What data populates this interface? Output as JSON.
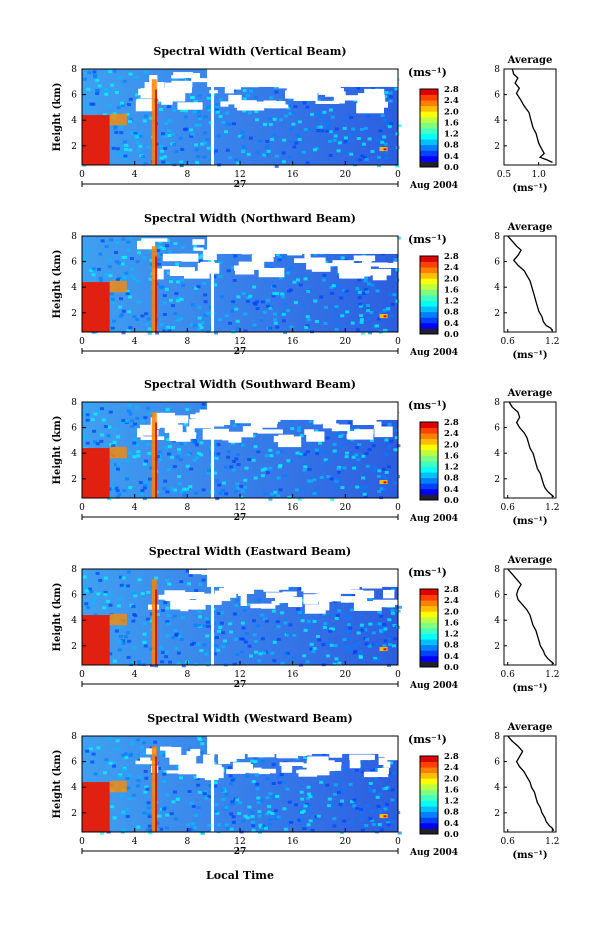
{
  "figure": {
    "xlabel_bottom": "Local Time",
    "date_label": "Aug 2004",
    "day_label": "27"
  },
  "chart_data": [
    {
      "type": "heatmap",
      "title": "Spectral Width (Vertical Beam)",
      "ylabel": "Height (km)",
      "xlabel": "",
      "x_ticks": [
        "0",
        "4",
        "8",
        "12",
        "16",
        "20",
        "0"
      ],
      "y_ticks": [
        "2",
        "4",
        "6",
        "8"
      ],
      "ylim": [
        0.5,
        8
      ],
      "xlim": [
        0,
        24
      ],
      "colorbar": {
        "unit": "(ms⁻¹)",
        "ticks": [
          "0.0",
          "0.4",
          "0.8",
          "1.2",
          "1.6",
          "2.0",
          "2.4",
          "2.8"
        ],
        "range": [
          0,
          2.8
        ]
      },
      "profile": {
        "title": "Average",
        "xlabel": "(ms⁻¹)",
        "x_ticks": [
          "0.5",
          "1.0"
        ],
        "xlim": [
          0.5,
          1.25
        ],
        "y_ticks": [
          "2",
          "4",
          "6",
          "8"
        ],
        "ylim": [
          0.5,
          8
        ],
        "points": [
          [
            0.62,
            8.0
          ],
          [
            0.64,
            7.6
          ],
          [
            0.7,
            7.3
          ],
          [
            0.66,
            6.9
          ],
          [
            0.72,
            6.5
          ],
          [
            0.68,
            6.1
          ],
          [
            0.74,
            5.6
          ],
          [
            0.78,
            5.2
          ],
          [
            0.82,
            4.9
          ],
          [
            0.86,
            4.6
          ],
          [
            0.88,
            4.2
          ],
          [
            0.9,
            3.8
          ],
          [
            0.92,
            3.4
          ],
          [
            0.96,
            3.0
          ],
          [
            0.98,
            2.6
          ],
          [
            1.0,
            2.2
          ],
          [
            1.04,
            1.8
          ],
          [
            1.08,
            1.4
          ],
          [
            1.02,
            1.1
          ],
          [
            1.12,
            0.9
          ],
          [
            1.2,
            0.7
          ]
        ]
      }
    },
    {
      "type": "heatmap",
      "title": "Spectral Width (Northward Beam)",
      "ylabel": "Height (km)",
      "xlabel": "",
      "x_ticks": [
        "0",
        "4",
        "8",
        "12",
        "16",
        "20",
        "0"
      ],
      "y_ticks": [
        "2",
        "4",
        "6",
        "8"
      ],
      "ylim": [
        0.5,
        8
      ],
      "xlim": [
        0,
        24
      ],
      "colorbar": {
        "unit": "(ms⁻¹)",
        "ticks": [
          "0.0",
          "0.4",
          "0.8",
          "1.2",
          "1.6",
          "2.0",
          "2.4",
          "2.8"
        ],
        "range": [
          0,
          2.8
        ]
      },
      "profile": {
        "title": "Average",
        "xlabel": "(ms⁻¹)",
        "x_ticks": [
          "0.6",
          "1.2"
        ],
        "xlim": [
          0.55,
          1.25
        ],
        "y_ticks": [
          "2",
          "4",
          "6",
          "8"
        ],
        "ylim": [
          0.5,
          8
        ],
        "points": [
          [
            0.6,
            8.0
          ],
          [
            0.66,
            7.6
          ],
          [
            0.72,
            7.2
          ],
          [
            0.78,
            6.9
          ],
          [
            0.74,
            6.5
          ],
          [
            0.68,
            6.1
          ],
          [
            0.74,
            5.7
          ],
          [
            0.82,
            5.3
          ],
          [
            0.86,
            4.9
          ],
          [
            0.9,
            4.5
          ],
          [
            0.92,
            4.1
          ],
          [
            0.94,
            3.7
          ],
          [
            0.96,
            3.3
          ],
          [
            0.98,
            2.9
          ],
          [
            1.0,
            2.5
          ],
          [
            1.02,
            2.1
          ],
          [
            1.06,
            1.7
          ],
          [
            1.08,
            1.3
          ],
          [
            1.12,
            1.0
          ],
          [
            1.18,
            0.8
          ],
          [
            1.2,
            0.6
          ]
        ]
      }
    },
    {
      "type": "heatmap",
      "title": "Spectral Width (Southward Beam)",
      "ylabel": "Height (km)",
      "xlabel": "",
      "x_ticks": [
        "0",
        "4",
        "8",
        "12",
        "16",
        "20",
        "0"
      ],
      "y_ticks": [
        "2",
        "4",
        "6",
        "8"
      ],
      "ylim": [
        0.5,
        8
      ],
      "xlim": [
        0,
        24
      ],
      "colorbar": {
        "unit": "(ms⁻¹)",
        "ticks": [
          "0.0",
          "0.4",
          "0.8",
          "1.2",
          "1.6",
          "2.0",
          "2.4",
          "2.8"
        ],
        "range": [
          0,
          2.8
        ]
      },
      "profile": {
        "title": "Average",
        "xlabel": "(ms⁻¹)",
        "x_ticks": [
          "0.6",
          "1.2"
        ],
        "xlim": [
          0.55,
          1.25
        ],
        "y_ticks": [
          "2",
          "4",
          "6",
          "8"
        ],
        "ylim": [
          0.5,
          8
        ],
        "points": [
          [
            0.62,
            8.0
          ],
          [
            0.66,
            7.6
          ],
          [
            0.74,
            7.2
          ],
          [
            0.76,
            6.8
          ],
          [
            0.72,
            6.4
          ],
          [
            0.76,
            6.0
          ],
          [
            0.82,
            5.6
          ],
          [
            0.86,
            5.2
          ],
          [
            0.88,
            4.8
          ],
          [
            0.9,
            4.4
          ],
          [
            0.94,
            4.0
          ],
          [
            0.96,
            3.6
          ],
          [
            0.98,
            3.2
          ],
          [
            1.0,
            2.8
          ],
          [
            1.04,
            2.4
          ],
          [
            1.06,
            2.0
          ],
          [
            1.08,
            1.6
          ],
          [
            1.1,
            1.3
          ],
          [
            1.14,
            1.0
          ],
          [
            1.18,
            0.8
          ],
          [
            1.22,
            0.6
          ]
        ]
      }
    },
    {
      "type": "heatmap",
      "title": "Spectral Width (Eastward Beam)",
      "ylabel": "Height (km)",
      "xlabel": "",
      "x_ticks": [
        "0",
        "4",
        "8",
        "12",
        "16",
        "20",
        "0"
      ],
      "y_ticks": [
        "2",
        "4",
        "6",
        "8"
      ],
      "ylim": [
        0.5,
        8
      ],
      "xlim": [
        0,
        24
      ],
      "colorbar": {
        "unit": "(ms⁻¹)",
        "ticks": [
          "0.0",
          "0.4",
          "0.8",
          "1.2",
          "1.6",
          "2.0",
          "2.4",
          "2.8"
        ],
        "range": [
          0,
          2.8
        ]
      },
      "profile": {
        "title": "Average",
        "xlabel": "(ms⁻¹)",
        "x_ticks": [
          "0.6",
          "1.2"
        ],
        "xlim": [
          0.55,
          1.25
        ],
        "y_ticks": [
          "2",
          "4",
          "6",
          "8"
        ],
        "ylim": [
          0.5,
          8
        ],
        "points": [
          [
            0.6,
            8.0
          ],
          [
            0.66,
            7.6
          ],
          [
            0.72,
            7.2
          ],
          [
            0.78,
            6.8
          ],
          [
            0.74,
            6.4
          ],
          [
            0.72,
            6.0
          ],
          [
            0.74,
            5.6
          ],
          [
            0.8,
            5.2
          ],
          [
            0.86,
            4.8
          ],
          [
            0.9,
            4.4
          ],
          [
            0.92,
            4.0
          ],
          [
            0.94,
            3.6
          ],
          [
            0.98,
            3.2
          ],
          [
            1.0,
            2.8
          ],
          [
            1.02,
            2.4
          ],
          [
            1.04,
            2.0
          ],
          [
            1.08,
            1.6
          ],
          [
            1.1,
            1.3
          ],
          [
            1.14,
            1.0
          ],
          [
            1.18,
            0.8
          ],
          [
            1.22,
            0.6
          ]
        ]
      }
    },
    {
      "type": "heatmap",
      "title": "Spectral Width (Westward Beam)",
      "ylabel": "Height (km)",
      "xlabel": "",
      "x_ticks": [
        "0",
        "4",
        "8",
        "12",
        "16",
        "20",
        "0"
      ],
      "y_ticks": [
        "2",
        "4",
        "6",
        "8"
      ],
      "ylim": [
        0.5,
        8
      ],
      "xlim": [
        0,
        24
      ],
      "colorbar": {
        "unit": "(ms⁻¹)",
        "ticks": [
          "0.0",
          "0.4",
          "0.8",
          "1.2",
          "1.6",
          "2.0",
          "2.4",
          "2.8"
        ],
        "range": [
          0,
          2.8
        ]
      },
      "profile": {
        "title": "Average",
        "xlabel": "(ms⁻¹)",
        "x_ticks": [
          "0.6",
          "1.2"
        ],
        "xlim": [
          0.55,
          1.25
        ],
        "y_ticks": [
          "2",
          "4",
          "6",
          "8"
        ],
        "ylim": [
          0.5,
          8
        ],
        "points": [
          [
            0.6,
            8.0
          ],
          [
            0.66,
            7.6
          ],
          [
            0.74,
            7.2
          ],
          [
            0.8,
            6.8
          ],
          [
            0.76,
            6.4
          ],
          [
            0.72,
            6.0
          ],
          [
            0.76,
            5.6
          ],
          [
            0.82,
            5.2
          ],
          [
            0.86,
            4.8
          ],
          [
            0.9,
            4.4
          ],
          [
            0.92,
            4.0
          ],
          [
            0.96,
            3.6
          ],
          [
            0.98,
            3.2
          ],
          [
            1.0,
            2.8
          ],
          [
            1.04,
            2.4
          ],
          [
            1.06,
            2.0
          ],
          [
            1.1,
            1.6
          ],
          [
            1.12,
            1.3
          ],
          [
            1.16,
            1.0
          ],
          [
            1.2,
            0.8
          ],
          [
            1.22,
            0.6
          ]
        ]
      }
    }
  ]
}
